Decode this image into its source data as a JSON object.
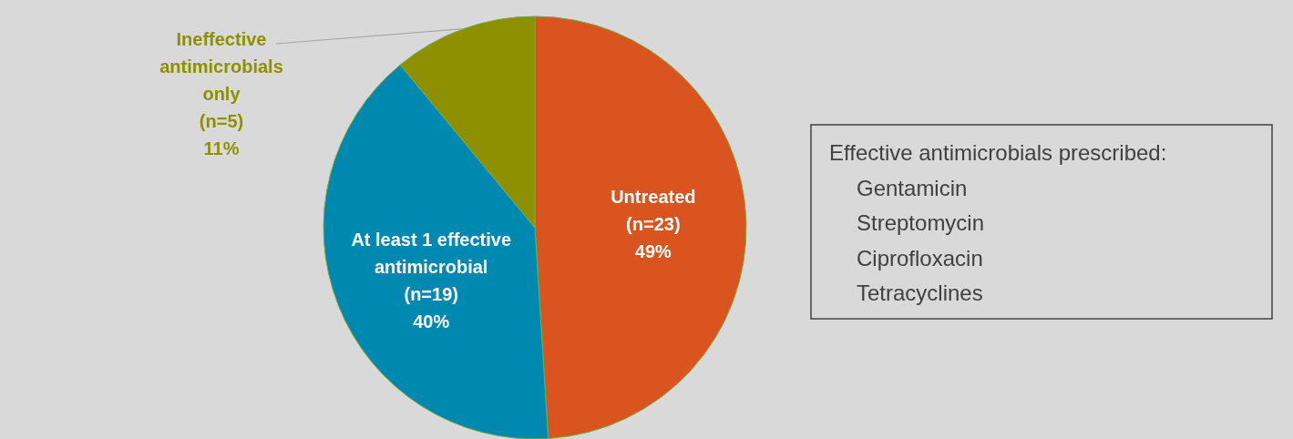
{
  "chart_data": {
    "type": "pie",
    "categories": [
      "Untreated",
      "At least 1 effective antimicrobial",
      "Ineffective antimicrobials only"
    ],
    "values": [
      49,
      40,
      11
    ],
    "value_labels": [
      "(n=23)\n49%",
      "(n=19)\n40%",
      "(n=5)\n11%"
    ],
    "colors": [
      "#d9541e",
      "#0089b0",
      "#8f9000"
    ],
    "annotations": [
      "Effective antimicrobials prescribed:\nGentamicin\nStreptomycin\nCiprofloxacin\nTetracyclines"
    ]
  }
}
